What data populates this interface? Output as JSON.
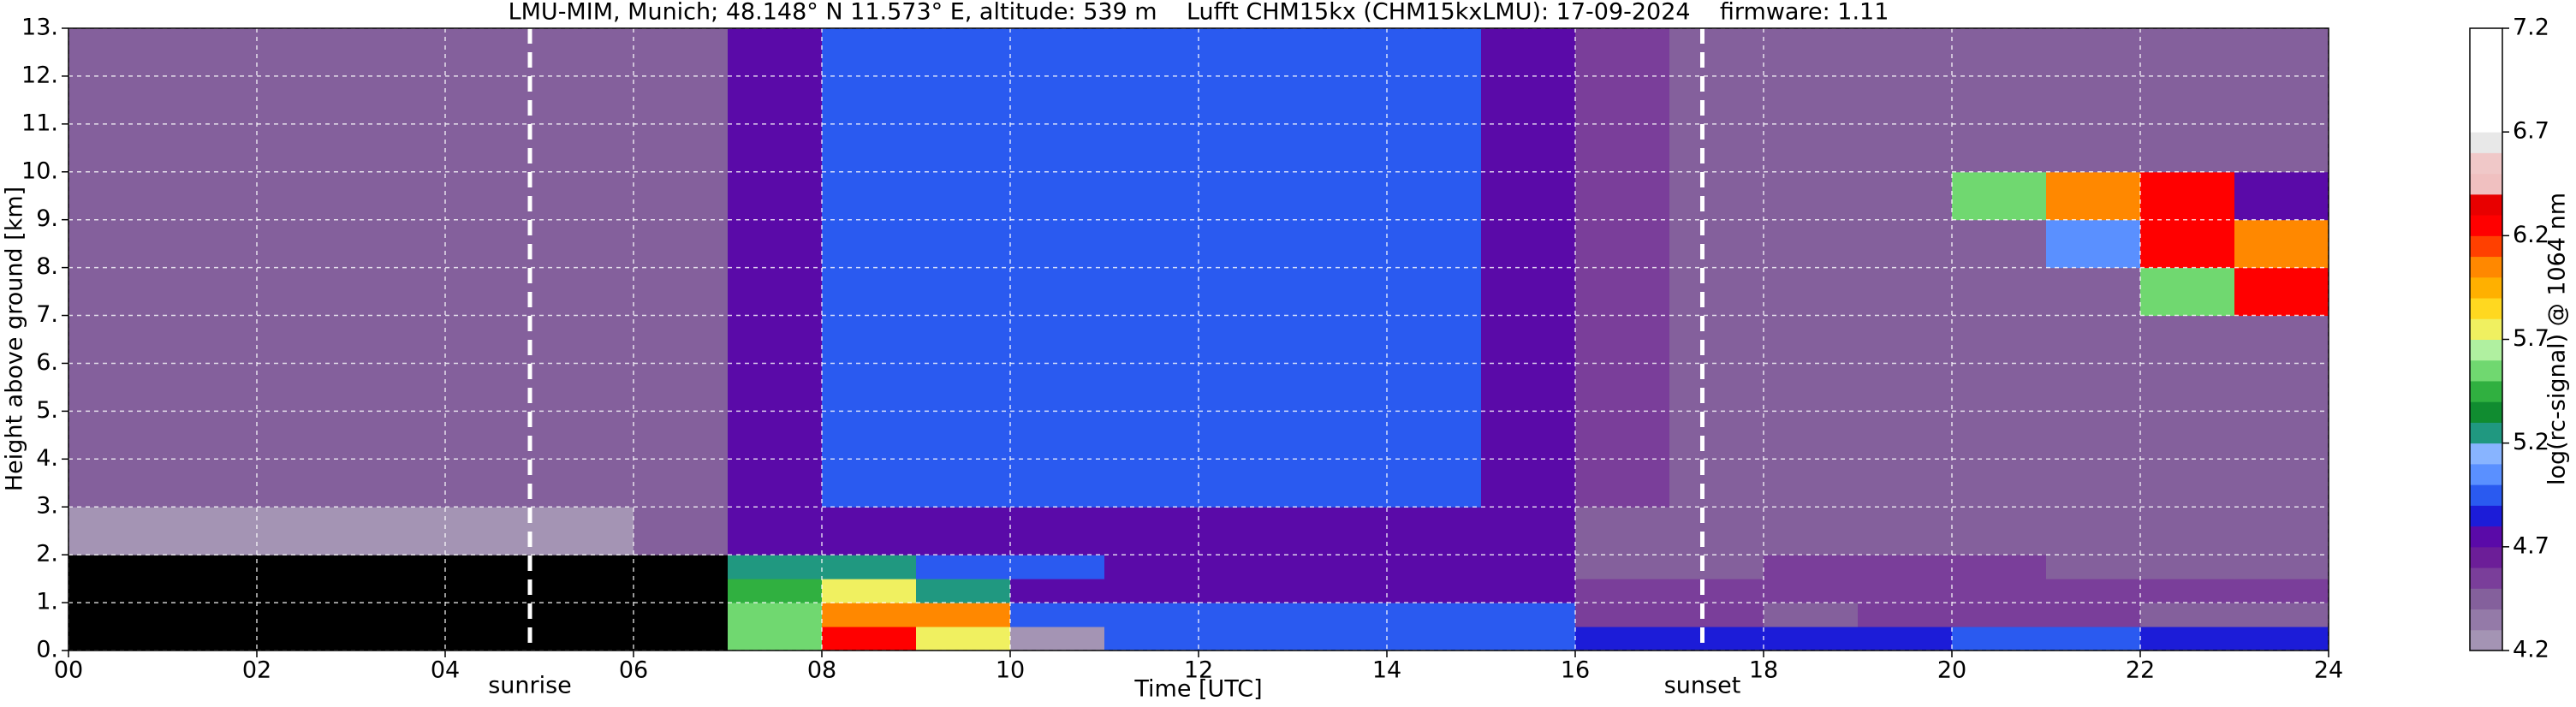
{
  "chart_data": {
    "type": "heatmap",
    "title": "LMU-MIM, Munich; 48.148° N 11.573° E, altitude: 539 m    Lufft CHM15kx (CHM15kxLMU): 17-09-2024    firmware: 1.11",
    "x_label": "Time [UTC]",
    "y_label": "Height above ground [km]",
    "colorbar_label": "log(rc-signal) @ 1064 nm",
    "xlim": [
      0,
      24
    ],
    "ylim": [
      0,
      13
    ],
    "xticks": [
      {
        "value": 0,
        "label": "00"
      },
      {
        "value": 2,
        "label": "02"
      },
      {
        "value": 4,
        "label": "04"
      },
      {
        "value": 6,
        "label": "06"
      },
      {
        "value": 8,
        "label": "08"
      },
      {
        "value": 10,
        "label": "10"
      },
      {
        "value": 12,
        "label": "12"
      },
      {
        "value": 14,
        "label": "14"
      },
      {
        "value": 16,
        "label": "16"
      },
      {
        "value": 18,
        "label": "18"
      },
      {
        "value": 20,
        "label": "20"
      },
      {
        "value": 22,
        "label": "22"
      },
      {
        "value": 24,
        "label": "24"
      }
    ],
    "yticks": [
      {
        "value": 0,
        "label": "0."
      },
      {
        "value": 1,
        "label": "1."
      },
      {
        "value": 2,
        "label": "2."
      },
      {
        "value": 3,
        "label": "3."
      },
      {
        "value": 4,
        "label": "4."
      },
      {
        "value": 5,
        "label": "5."
      },
      {
        "value": 6,
        "label": "6."
      },
      {
        "value": 7,
        "label": "7."
      },
      {
        "value": 8,
        "label": "8."
      },
      {
        "value": 9,
        "label": "9."
      },
      {
        "value": 10,
        "label": "10."
      },
      {
        "value": 11,
        "label": "11."
      },
      {
        "value": 12,
        "label": "12."
      },
      {
        "value": 13,
        "label": "13."
      }
    ],
    "grid": true,
    "annotations": [
      {
        "text": "sunrise",
        "x": 4.9
      },
      {
        "text": "sunset",
        "x": 17.35
      }
    ],
    "clim": [
      4.2,
      7.2
    ],
    "cticks": [
      4.2,
      4.7,
      5.2,
      5.7,
      6.2,
      6.7,
      7.2
    ],
    "under_color": "#000000",
    "colors": [
      "#a494b4",
      "#947aa8",
      "#84609c",
      "#7a3e9a",
      "#6c1e98",
      "#5a0aa8",
      "#1c1cd8",
      "#2a5af0",
      "#5a90ff",
      "#88b4ff",
      "#209880",
      "#108c30",
      "#30b040",
      "#70d870",
      "#b0f0a0",
      "#f0f060",
      "#ffd820",
      "#ffb000",
      "#ff8800",
      "#ff4000",
      "#ff0000",
      "#e80000",
      "#f0c0c0",
      "#f0c8c8",
      "#e8e8e8",
      "#ffffff",
      "#ffffff",
      "#ffffff",
      "#ffffff",
      "#ffffff"
    ],
    "x_bins": [
      0,
      1,
      2,
      3,
      4,
      5,
      6,
      7,
      8,
      9,
      10,
      11,
      12,
      13,
      14,
      15,
      16,
      17,
      18,
      19,
      20,
      21,
      22,
      23,
      24
    ],
    "y_bins": [
      0,
      0.5,
      1,
      1.5,
      2,
      3,
      4,
      5,
      6,
      7,
      8,
      9,
      10,
      11,
      12,
      13
    ],
    "z": [
      [
        4.0,
        4.0,
        4.0,
        4.0,
        4.0,
        4.0,
        4.1,
        5.6,
        6.2,
        5.8,
        4.3,
        4.9,
        4.9,
        4.9,
        4.9,
        4.9,
        4.85,
        4.85,
        4.85,
        4.85,
        4.9,
        4.9,
        4.85,
        4.85
      ],
      [
        3.9,
        3.9,
        3.9,
        3.9,
        3.9,
        3.9,
        3.9,
        5.6,
        6.0,
        6.0,
        4.9,
        4.9,
        4.95,
        4.95,
        4.95,
        4.95,
        4.55,
        4.55,
        4.5,
        4.55,
        4.55,
        4.55,
        4.5,
        4.5
      ],
      [
        3.9,
        3.9,
        3.9,
        3.9,
        3.9,
        3.9,
        3.9,
        5.5,
        5.8,
        5.2,
        4.8,
        4.7,
        4.7,
        4.7,
        4.7,
        4.7,
        4.55,
        4.6,
        4.6,
        4.6,
        4.6,
        4.55,
        4.55,
        4.55
      ],
      [
        3.9,
        3.9,
        3.9,
        3.9,
        3.9,
        3.9,
        3.9,
        5.3,
        5.3,
        5.0,
        4.9,
        4.7,
        4.7,
        4.7,
        4.7,
        4.7,
        4.5,
        4.5,
        4.55,
        4.55,
        4.55,
        4.5,
        4.5,
        4.5
      ],
      [
        4.3,
        4.3,
        4.3,
        4.3,
        4.3,
        4.3,
        4.4,
        4.8,
        4.8,
        4.8,
        4.8,
        4.8,
        4.8,
        4.8,
        4.8,
        4.7,
        4.5,
        4.45,
        4.45,
        4.45,
        4.45,
        4.45,
        4.45,
        4.45
      ],
      [
        4.45,
        4.45,
        4.45,
        4.45,
        4.45,
        4.45,
        4.5,
        4.7,
        4.9,
        5.0,
        5.0,
        4.95,
        4.95,
        4.9,
        4.9,
        4.7,
        4.55,
        4.5,
        4.5,
        4.5,
        4.5,
        4.5,
        4.5,
        4.5
      ],
      [
        4.45,
        4.45,
        4.45,
        4.45,
        4.45,
        4.45,
        4.5,
        4.7,
        4.9,
        5.0,
        5.0,
        4.95,
        4.95,
        4.9,
        4.9,
        4.7,
        4.55,
        4.5,
        4.5,
        4.5,
        4.5,
        4.5,
        4.5,
        4.5
      ],
      [
        4.45,
        4.45,
        4.45,
        4.45,
        4.45,
        4.45,
        4.5,
        4.7,
        4.9,
        5.0,
        5.0,
        4.95,
        4.95,
        4.9,
        4.9,
        4.7,
        4.55,
        4.5,
        4.5,
        4.5,
        4.5,
        4.5,
        4.5,
        4.5
      ],
      [
        4.45,
        4.45,
        4.45,
        4.45,
        4.45,
        4.45,
        4.5,
        4.7,
        4.9,
        5.0,
        5.0,
        4.95,
        4.95,
        4.9,
        4.9,
        4.7,
        4.55,
        4.5,
        4.5,
        4.5,
        4.5,
        4.5,
        4.5,
        4.5
      ],
      [
        4.45,
        4.45,
        4.45,
        4.45,
        4.45,
        4.45,
        4.5,
        4.7,
        4.9,
        5.0,
        5.0,
        4.95,
        4.95,
        4.9,
        4.9,
        4.7,
        4.55,
        4.5,
        4.5,
        4.5,
        4.5,
        4.5,
        5.6,
        6.3
      ],
      [
        4.45,
        4.45,
        4.45,
        4.45,
        4.45,
        4.45,
        4.5,
        4.7,
        4.9,
        5.0,
        5.0,
        4.95,
        4.95,
        4.9,
        4.9,
        4.7,
        4.55,
        4.5,
        4.5,
        4.5,
        4.5,
        5.1,
        6.2,
        6.1
      ],
      [
        4.45,
        4.45,
        4.45,
        4.45,
        4.45,
        4.45,
        4.5,
        4.7,
        4.9,
        5.0,
        5.0,
        4.95,
        4.95,
        4.9,
        4.9,
        4.7,
        4.55,
        4.5,
        4.5,
        4.5,
        5.6,
        6.0,
        6.3,
        4.8
      ],
      [
        4.45,
        4.45,
        4.45,
        4.45,
        4.45,
        4.45,
        4.5,
        4.7,
        4.9,
        5.0,
        5.0,
        4.95,
        4.95,
        4.9,
        4.9,
        4.7,
        4.55,
        4.5,
        4.5,
        4.5,
        4.5,
        4.5,
        4.5,
        4.5
      ],
      [
        4.45,
        4.45,
        4.45,
        4.45,
        4.45,
        4.45,
        4.5,
        4.7,
        4.9,
        5.0,
        5.0,
        4.95,
        4.95,
        4.9,
        4.9,
        4.7,
        4.55,
        4.5,
        4.5,
        4.5,
        4.5,
        4.5,
        4.5,
        4.5
      ],
      [
        4.45,
        4.45,
        4.45,
        4.45,
        4.45,
        4.45,
        4.5,
        4.7,
        4.9,
        5.0,
        5.0,
        4.95,
        4.95,
        4.9,
        4.9,
        4.7,
        4.55,
        4.5,
        4.5,
        4.5,
        4.5,
        4.5,
        4.5,
        4.5
      ]
    ]
  }
}
